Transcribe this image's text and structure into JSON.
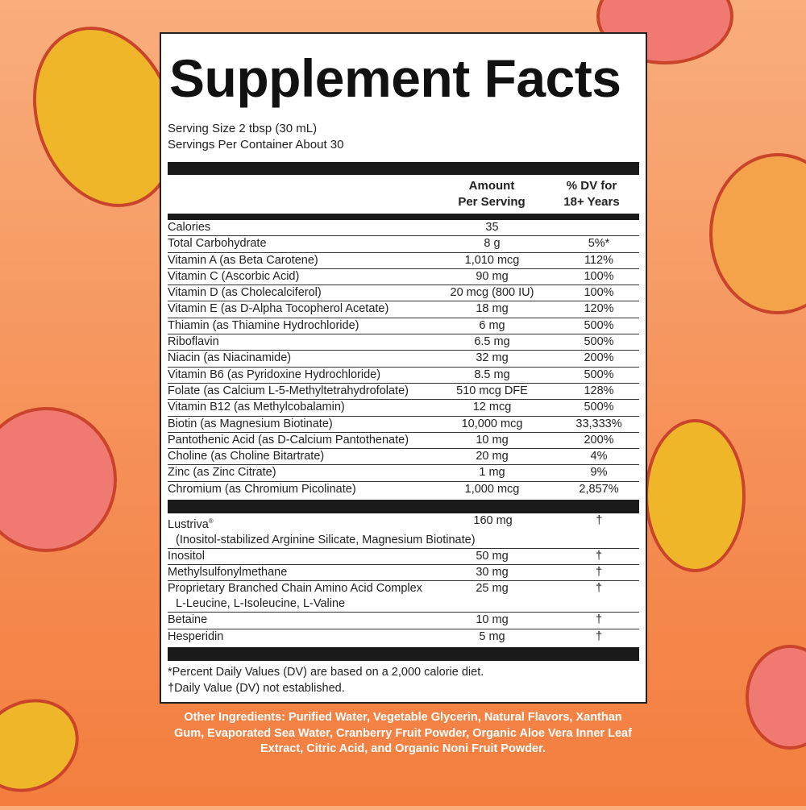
{
  "title": "Supplement Facts",
  "serving_size": "Serving Size 2 tbsp (30 mL)",
  "servings_per_container": "Servings Per Container About 30",
  "header": {
    "amount_1": "Amount",
    "amount_2": "Per Serving",
    "dv_1": "% DV for",
    "dv_2": "18+ Years"
  },
  "nutrients": [
    {
      "name": "Calories",
      "amount": "35",
      "dv": ""
    },
    {
      "name": "Total Carbohydrate",
      "amount": "8 g",
      "dv": "5%*"
    },
    {
      "name": "Vitamin A (as Beta Carotene)",
      "amount": "1,010 mcg",
      "dv": "112%"
    },
    {
      "name": "Vitamin C (Ascorbic Acid)",
      "amount": "90 mg",
      "dv": "100%"
    },
    {
      "name": "Vitamin D (as Cholecalciferol)",
      "amount": "20 mcg (800 IU)",
      "dv": "100%"
    },
    {
      "name": "Vitamin E (as D-Alpha Tocopherol Acetate)",
      "amount": "18 mg",
      "dv": "120%"
    },
    {
      "name": "Thiamin (as Thiamine Hydrochloride)",
      "amount": "6 mg",
      "dv": "500%"
    },
    {
      "name": "Riboflavin",
      "amount": "6.5 mg",
      "dv": "500%"
    },
    {
      "name": "Niacin (as Niacinamide)",
      "amount": "32 mg",
      "dv": "200%"
    },
    {
      "name": "Vitamin B6 (as Pyridoxine Hydrochloride)",
      "amount": "8.5 mg",
      "dv": "500%"
    },
    {
      "name": "Folate (as Calcium L-5-Methyltetrahydrofolate)",
      "amount": "510 mcg DFE",
      "dv": "128%"
    },
    {
      "name": "Vitamin B12 (as Methylcobalamin)",
      "amount": "12 mcg",
      "dv": "500%"
    },
    {
      "name": "Biotin (as Magnesium Biotinate)",
      "amount": "10,000 mcg",
      "dv": "33,333%"
    },
    {
      "name": "Pantothenic Acid (as D-Calcium Pantothenate)",
      "amount": "10 mg",
      "dv": "200%"
    },
    {
      "name": "Choline (as Choline Bitartrate)",
      "amount": "20 mg",
      "dv": "4%"
    },
    {
      "name": "Zinc (as Zinc Citrate)",
      "amount": "1 mg",
      "dv": "9%"
    },
    {
      "name": "Chromium (as Chromium Picolinate)",
      "amount": "1,000 mcg",
      "dv": "2,857%"
    }
  ],
  "other_nutrients": [
    {
      "name": "Lustriva",
      "mark": "®",
      "sub": "(Inositol-stabilized Arginine Silicate, Magnesium Biotinate)",
      "amount": "160 mg",
      "dv": "†"
    },
    {
      "name": "Inositol",
      "amount": "50 mg",
      "dv": "†"
    },
    {
      "name": "Methylsulfonylmethane",
      "amount": "30 mg",
      "dv": "†"
    },
    {
      "name": "Proprietary Branched Chain Amino Acid Complex",
      "sub": "L-Leucine, L-Isoleucine, L-Valine",
      "amount": "25 mg",
      "dv": "†"
    },
    {
      "name": "Betaine",
      "amount": "10 mg",
      "dv": "†"
    },
    {
      "name": "Hesperidin",
      "amount": "5 mg",
      "dv": "†"
    }
  ],
  "footnotes": [
    "*Percent Daily Values (DV) are based on a 2,000 calorie diet.",
    "†Daily Value (DV) not established."
  ],
  "other_ingredients": "Other Ingredients: Purified Water, Vegetable Glycerin, Natural Flavors, Xanthan Gum, Evaporated Sea Water, Cranberry Fruit Powder, Organic Aloe Vera Inner Leaf Extract, Citric Acid, and Organic Noni Fruit Powder.",
  "colors": {
    "background": "#f58e55",
    "fruit_yellow": "#f0b62a",
    "fruit_pink": "#f07a72",
    "outline": "#c9442a"
  }
}
